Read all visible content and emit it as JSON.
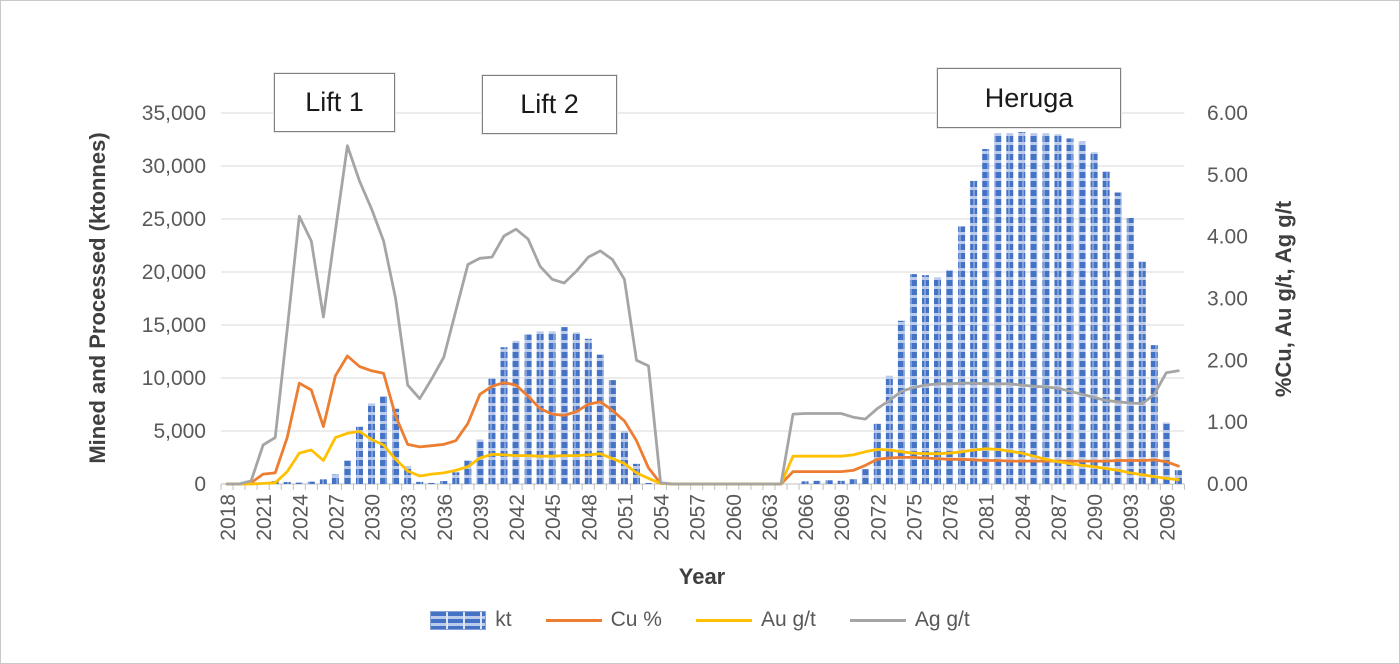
{
  "colors": {
    "bar_blue": "#4472C4",
    "bar_light": "#BCCBEA",
    "cu_orange": "#ED7D31",
    "au_yellow": "#FFC000",
    "ag_gray": "#A5A5A5",
    "gridline": "#D9D9D9",
    "axis_line": "#BFBFBF",
    "tick_text": "#595959"
  },
  "left_axis": {
    "title": "Mined and Processed (ktonnes)",
    "tick_labels": [
      "0",
      "5,000",
      "10,000",
      "15,000",
      "20,000",
      "25,000",
      "30,000",
      "35,000"
    ],
    "min": 0,
    "max": 35000,
    "step": 5000
  },
  "right_axis": {
    "title": "%Cu, Au g/t, Ag g/t",
    "tick_labels": [
      "0.00",
      "1.00",
      "2.00",
      "3.00",
      "4.00",
      "5.00",
      "6.00"
    ],
    "min": 0,
    "max": 6,
    "step": 1
  },
  "x_axis": {
    "title": "Year",
    "tick_labels": [
      "2018",
      "2021",
      "2024",
      "2027",
      "2030",
      "2033",
      "2036",
      "2039",
      "2042",
      "2045",
      "2048",
      "2051",
      "2054",
      "2057",
      "2060",
      "2063",
      "2066",
      "2069",
      "2072",
      "2075",
      "2078",
      "2081",
      "2084",
      "2087",
      "2090",
      "2093",
      "2096"
    ]
  },
  "annotations": [
    {
      "text": "Lift 1"
    },
    {
      "text": "Lift 2"
    },
    {
      "text": "Heruga"
    }
  ],
  "legend": {
    "items": [
      {
        "label": "kt",
        "type": "bar",
        "color": "#4472C4"
      },
      {
        "label": "Cu %",
        "type": "line",
        "color": "#ED7D31"
      },
      {
        "label": "Au g/t",
        "type": "line",
        "color": "#FFC000"
      },
      {
        "label": "Ag g/t",
        "type": "line",
        "color": "#A5A5A5"
      }
    ]
  },
  "chart_data": {
    "type": "bar",
    "subtype": "combo-bar-line",
    "title": "",
    "xlabel": "Year",
    "ylabel_left": "Mined and Processed (ktonnes)",
    "ylabel_right": "%Cu, Au g/t, Ag g/t",
    "ylim_left": [
      0,
      35000
    ],
    "ylim_right": [
      0,
      6
    ],
    "grid": true,
    "legend_position": "bottom",
    "categories": [
      2018,
      2019,
      2020,
      2021,
      2022,
      2023,
      2024,
      2025,
      2026,
      2027,
      2028,
      2029,
      2030,
      2031,
      2032,
      2033,
      2034,
      2035,
      2036,
      2037,
      2038,
      2039,
      2040,
      2041,
      2042,
      2043,
      2044,
      2045,
      2046,
      2047,
      2048,
      2049,
      2050,
      2051,
      2052,
      2053,
      2054,
      2055,
      2056,
      2057,
      2058,
      2059,
      2060,
      2061,
      2062,
      2063,
      2064,
      2065,
      2066,
      2067,
      2068,
      2069,
      2070,
      2071,
      2072,
      2073,
      2074,
      2075,
      2076,
      2077,
      2078,
      2079,
      2080,
      2081,
      2082,
      2083,
      2084,
      2085,
      2086,
      2087,
      2088,
      2089,
      2090,
      2091,
      2092,
      2093,
      2094,
      2095,
      2096,
      2097
    ],
    "series": [
      {
        "name": "kt",
        "type": "bar",
        "axis": "left",
        "color": "#4472C4",
        "values": [
          0,
          0,
          0,
          100,
          280,
          190,
          130,
          220,
          440,
          900,
          2200,
          5400,
          7600,
          8300,
          7100,
          1700,
          200,
          100,
          280,
          1100,
          2200,
          4200,
          10000,
          12900,
          13500,
          14100,
          14400,
          14400,
          14800,
          14300,
          13700,
          12200,
          9800,
          5000,
          1900,
          100,
          50,
          0,
          0,
          0,
          0,
          0,
          0,
          0,
          0,
          0,
          0,
          0,
          250,
          300,
          350,
          300,
          450,
          1400,
          5700,
          10200,
          15400,
          19800,
          19700,
          19500,
          20200,
          24300,
          28600,
          31600,
          33100,
          33100,
          33200,
          33100,
          33100,
          33000,
          32600,
          32300,
          31300,
          29500,
          27500,
          25100,
          21000,
          13100,
          5800,
          1300
        ]
      },
      {
        "name": "Cu %",
        "type": "line",
        "axis": "right",
        "color": "#ED7D31",
        "values": [
          0,
          0,
          0.02,
          0.16,
          0.18,
          0.75,
          1.63,
          1.52,
          0.93,
          1.75,
          2.07,
          1.9,
          1.83,
          1.79,
          1.1,
          0.64,
          0.6,
          0.62,
          0.64,
          0.7,
          0.98,
          1.45,
          1.58,
          1.64,
          1.6,
          1.42,
          1.22,
          1.13,
          1.11,
          1.17,
          1.29,
          1.33,
          1.19,
          1.02,
          0.7,
          0.26,
          0.01,
          0,
          0,
          0,
          0,
          0,
          0,
          0,
          0,
          0,
          0,
          0.2,
          0.2,
          0.2,
          0.2,
          0.2,
          0.22,
          0.3,
          0.4,
          0.42,
          0.43,
          0.43,
          0.42,
          0.41,
          0.4,
          0.4,
          0.39,
          0.38,
          0.38,
          0.37,
          0.37,
          0.37,
          0.37,
          0.37,
          0.37,
          0.37,
          0.37,
          0.37,
          0.38,
          0.38,
          0.38,
          0.39,
          0.36,
          0.29
        ]
      },
      {
        "name": "Au g/t",
        "type": "line",
        "axis": "right",
        "color": "#FFC000",
        "values": [
          0,
          0,
          0,
          0.01,
          0.02,
          0.2,
          0.5,
          0.55,
          0.38,
          0.75,
          0.82,
          0.85,
          0.72,
          0.63,
          0.4,
          0.21,
          0.13,
          0.16,
          0.18,
          0.22,
          0.28,
          0.42,
          0.48,
          0.47,
          0.46,
          0.46,
          0.45,
          0.45,
          0.46,
          0.46,
          0.47,
          0.49,
          0.41,
          0.33,
          0.18,
          0.09,
          0.01,
          0,
          0,
          0,
          0,
          0,
          0,
          0,
          0,
          0,
          0,
          0.45,
          0.45,
          0.45,
          0.45,
          0.45,
          0.47,
          0.52,
          0.56,
          0.55,
          0.52,
          0.5,
          0.49,
          0.49,
          0.5,
          0.52,
          0.55,
          0.57,
          0.56,
          0.53,
          0.5,
          0.45,
          0.4,
          0.36,
          0.33,
          0.3,
          0.28,
          0.25,
          0.22,
          0.18,
          0.15,
          0.12,
          0.09,
          0.07
        ]
      },
      {
        "name": "Ag g/t",
        "type": "line",
        "axis": "right",
        "color": "#A5A5A5",
        "values": [
          0,
          0,
          0.05,
          0.63,
          0.75,
          2.5,
          4.33,
          3.93,
          2.7,
          4.1,
          5.47,
          4.9,
          4.45,
          3.93,
          3.0,
          1.6,
          1.38,
          1.7,
          2.05,
          2.8,
          3.55,
          3.65,
          3.67,
          4.01,
          4.12,
          3.96,
          3.52,
          3.31,
          3.25,
          3.44,
          3.67,
          3.77,
          3.63,
          3.31,
          2.0,
          1.91,
          0.02,
          0,
          0,
          0,
          0,
          0,
          0,
          0,
          0,
          0,
          0,
          1.13,
          1.14,
          1.14,
          1.14,
          1.14,
          1.08,
          1.05,
          1.22,
          1.35,
          1.5,
          1.56,
          1.6,
          1.62,
          1.62,
          1.63,
          1.63,
          1.62,
          1.62,
          1.62,
          1.6,
          1.58,
          1.57,
          1.55,
          1.5,
          1.45,
          1.4,
          1.35,
          1.33,
          1.31,
          1.3,
          1.45,
          1.8,
          1.83
        ]
      }
    ]
  }
}
